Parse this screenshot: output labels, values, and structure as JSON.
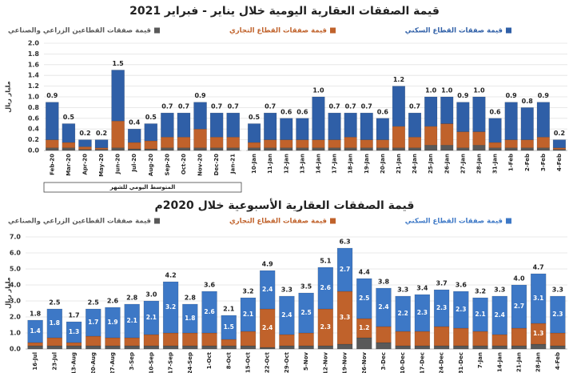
{
  "chart_data": [
    {
      "type": "stacked_bar",
      "title": "قيمة الصفقات العقارية اليومية خلال يناير - فبراير 2021",
      "y_label": "مليار ريال",
      "note": "المتوسط اليومي للشهر",
      "grid": true,
      "categories": [
        "Feb-20",
        "Mar-20",
        "Apr-20",
        "May-20",
        "Jun-20",
        "Jul-20",
        "Aug-20",
        "Sep-20",
        "Oct-20",
        "Nov-20",
        "Dec-20",
        "Jan-21"
      ],
      "series": [
        {
          "name": "قيمة صفقات القطاعين الزراعي والصناعي",
          "color": "#595959",
          "values": [
            0.05,
            0.05,
            0.02,
            0.02,
            0.05,
            0.03,
            0.03,
            0.05,
            0.05,
            0.05,
            0.05,
            0.05
          ]
        },
        {
          "name": "قيمة صفقات القطاع التجاري",
          "color": "#c0622b",
          "values": [
            0.15,
            0.1,
            0.05,
            0.03,
            0.5,
            0.12,
            0.15,
            0.2,
            0.2,
            0.35,
            0.2,
            0.2
          ]
        },
        {
          "name": "قيمة صفقات القطاع السكني",
          "color": "#2f5fa7",
          "values": [
            0.7,
            0.35,
            0.13,
            0.15,
            0.95,
            0.25,
            0.32,
            0.45,
            0.45,
            0.5,
            0.45,
            0.45
          ]
        }
      ],
      "total_labels": [
        "0.9",
        "0.5",
        "0.2",
        "0.2",
        "1.5",
        "0.4",
        "0.5",
        "0.7",
        "0.7",
        "0.9",
        "0.7",
        "0.7"
      ],
      "ylim": [
        0,
        2
      ],
      "yticks": [
        {
          "value": 0,
          "label": "0.0"
        },
        0.2,
        0.4,
        0.6,
        0.8,
        {
          "value": 1,
          "label": "1.0"
        },
        1.2,
        1.4,
        1.6,
        1.8,
        {
          "value": 2,
          "label": "2.0"
        }
      ]
    },
    {
      "type": "stacked_bar",
      "grid": true,
      "categories": [
        "10-Jan",
        "11-Jan",
        "12-Jan",
        "13-Jan",
        "14-Jan",
        "17-Jan",
        "18-Jan",
        "19-Jan",
        "20-Jan",
        "21-Jan",
        "24-Jan",
        "25-Jan",
        "26-Jan",
        "27-Jan",
        "28-Jan",
        "31-Jan",
        "1-Feb",
        "2-Feb",
        "3-Feb",
        "4-Feb"
      ],
      "series": [
        {
          "color": "#595959",
          "values": [
            0.05,
            0.05,
            0.05,
            0.05,
            0.05,
            0.05,
            0.05,
            0.05,
            0.05,
            0.05,
            0.05,
            0.1,
            0.1,
            0.05,
            0.1,
            0.05,
            0.05,
            0.05,
            0.05,
            0.02
          ]
        },
        {
          "color": "#c0622b",
          "values": [
            0.1,
            0.15,
            0.15,
            0.15,
            0.15,
            0.15,
            0.2,
            0.15,
            0.15,
            0.4,
            0.2,
            0.35,
            0.4,
            0.3,
            0.25,
            0.1,
            0.15,
            0.15,
            0.2,
            0.03
          ]
        },
        {
          "color": "#2f5fa7",
          "values": [
            0.35,
            0.5,
            0.4,
            0.4,
            0.8,
            0.5,
            0.45,
            0.5,
            0.4,
            0.75,
            0.45,
            0.55,
            0.5,
            0.55,
            0.65,
            0.45,
            0.7,
            0.6,
            0.65,
            0.15
          ]
        }
      ],
      "total_labels": [
        "0.5",
        "0.7",
        "0.6",
        "0.6",
        "1.0",
        "0.7",
        "0.7",
        "0.7",
        "0.6",
        "1.2",
        "0.7",
        "1.0",
        "1.0",
        "0.9",
        "1.0",
        "0.6",
        "0.9",
        "0.8",
        "0.9",
        "0.2"
      ],
      "ylim": [
        0,
        2
      ]
    },
    {
      "type": "stacked_bar",
      "title": "قيمة الصفقات العقارية الأسبوعية خلال 2020م",
      "y_label": "مليار ريال",
      "grid": true,
      "categories": [
        "16-Jul",
        "23-Jul",
        "13-Aug",
        "20-Aug",
        "27-Aug",
        "3-Sep",
        "10-Sep",
        "17-Sep",
        "24-Sep",
        "1-Oct",
        "8-Oct",
        "15-Oct",
        "22-Oct",
        "29-Oct",
        "5-Nov",
        "12-Nov",
        "19-Nov",
        "26-Nov",
        "3-Dec",
        "10-Dec",
        "17-Dec",
        "24-Dec",
        "31-Dec",
        "7-Jan",
        "14-Jan",
        "21-Jan",
        "28-Jan",
        "4-Feb"
      ],
      "series": [
        {
          "name": "قيمة صفقات القطاعين الزراعي والصناعي",
          "color": "#595959",
          "values": [
            0.2,
            0.2,
            0.2,
            0.2,
            0.2,
            0.2,
            0.2,
            0.2,
            0.2,
            0.2,
            0.2,
            0.2,
            0.1,
            0.2,
            0.2,
            0.2,
            0.3,
            0.7,
            0.4,
            0.2,
            0.2,
            0.2,
            0.2,
            0.2,
            0.2,
            0.2,
            0.3,
            0.2
          ]
        },
        {
          "name": "قيمة صفقات القطاع التجاري",
          "color": "#c0622b",
          "values": [
            0.2,
            0.5,
            0.2,
            0.6,
            0.5,
            0.5,
            0.7,
            0.8,
            0.8,
            0.8,
            0.4,
            0.9,
            2.4,
            0.7,
            0.8,
            2.3,
            3.3,
            1.2,
            1.0,
            0.9,
            0.9,
            1.2,
            1.1,
            0.9,
            0.7,
            1.1,
            1.3,
            0.8
          ],
          "value_labels": [
            null,
            null,
            null,
            null,
            null,
            null,
            null,
            null,
            null,
            null,
            null,
            null,
            "2.4",
            null,
            null,
            "2.3",
            "3.3",
            "1.2",
            null,
            null,
            null,
            null,
            null,
            null,
            null,
            null,
            "1.3",
            null
          ]
        },
        {
          "name": "قيمة صفقات القطاع السكني",
          "color": "#3d78c6",
          "values": [
            1.4,
            1.8,
            1.3,
            1.7,
            1.9,
            2.1,
            2.1,
            3.2,
            1.8,
            2.6,
            1.5,
            2.1,
            2.4,
            2.4,
            2.5,
            2.6,
            2.7,
            2.5,
            2.4,
            2.2,
            2.3,
            2.3,
            2.3,
            2.1,
            2.4,
            2.7,
            3.1,
            2.3
          ],
          "data_labels": true
        }
      ],
      "total_labels": [
        "1.8",
        "2.5",
        "1.7",
        "2.5",
        "2.6",
        "2.8",
        "3.0",
        "4.2",
        "2.8",
        "3.6",
        "2.1",
        "3.2",
        "4.9",
        "3.3",
        "3.5",
        "5.1",
        "6.3",
        "4.4",
        "3.8",
        "3.3",
        "3.4",
        "3.7",
        "3.6",
        "3.2",
        "3.3",
        "4.0",
        "4.7",
        "3.3"
      ],
      "ylim": [
        0,
        7
      ],
      "yticks": [
        {
          "value": 0,
          "label": "0.0"
        },
        {
          "value": 1,
          "label": "1.0"
        },
        {
          "value": 2,
          "label": "2.0"
        },
        {
          "value": 3,
          "label": "3.0"
        },
        {
          "value": 4,
          "label": "4.0"
        },
        {
          "value": 5,
          "label": "5.0"
        },
        {
          "value": 6,
          "label": "6.0"
        },
        {
          "value": 7,
          "label": "7.0"
        }
      ]
    }
  ]
}
